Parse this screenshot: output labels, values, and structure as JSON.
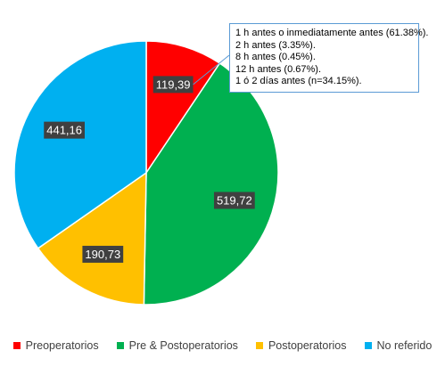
{
  "chart_data": {
    "type": "pie",
    "title": "",
    "start_angle_deg": 0,
    "direction": "clockwise",
    "slices": [
      {
        "name": "Preoperatorios",
        "label": "119,39",
        "value": 119.39,
        "color": "#ff0000"
      },
      {
        "name": "Pre & Postoperatorios",
        "label": "519,72",
        "value": 519.72,
        "color": "#00b050"
      },
      {
        "name": "Postoperatorios",
        "label": "190,73",
        "value": 190.73,
        "color": "#ffc000"
      },
      {
        "name": "No referido",
        "label": "441,16",
        "value": 441.16,
        "color": "#00b0f0"
      }
    ],
    "legend": {
      "position": "bottom",
      "entries": [
        "Preoperatorios",
        "Pre & Postoperatorios",
        "Postoperatorios",
        "No referido"
      ]
    },
    "annotation": {
      "attached_to": "Preoperatorios",
      "lines": [
        "1 h antes o inmediatamente antes (61.38%).",
        "2 h antes (3.35%).",
        "8 h antes (0.45%).",
        "12 h antes (0.67%).",
        "1 ó 2 días antes (n=34.15%)."
      ]
    }
  }
}
